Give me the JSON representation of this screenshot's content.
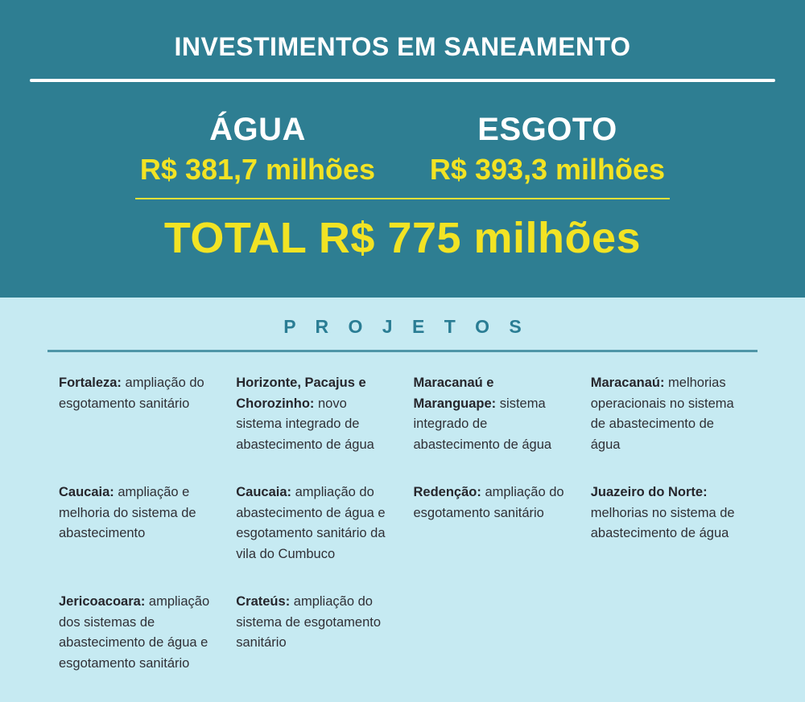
{
  "colors": {
    "header_bg": "#2e7e92",
    "accent_yellow": "#f2e324",
    "section_bg": "#c6eaf2",
    "section_title_color": "#2a7d94"
  },
  "header": {
    "title": "INVESTIMENTOS EM SANEAMENTO",
    "agua": {
      "label": "ÁGUA",
      "value": "R$ 381,7 milhões"
    },
    "esgoto": {
      "label": "ESGOTO",
      "value": "R$ 393,3 milhões"
    },
    "total": "TOTAL R$ 775 milhões"
  },
  "projects": {
    "section_title": "P R O J E T O S",
    "rows": [
      [
        {
          "name": "Fortaleza:",
          "desc": "ampliação do esgotamento sanitário"
        },
        {
          "name": "Horizonte, Pacajus e Chorozinho:",
          "desc": "novo sistema integrado de abastecimento de água"
        },
        {
          "name": "Maracanaú e Maranguape:",
          "desc": "sistema integrado de abastecimento de água"
        },
        {
          "name": "Maracanaú:",
          "desc": "melhorias operacionais no sistema de abastecimento de água"
        }
      ],
      [
        {
          "name": "Caucaia:",
          "desc": "ampliação e melhoria do sistema de abastecimento"
        },
        {
          "name": "Caucaia:",
          "desc": "ampliação do abastecimento de água e esgotamento sanitário da vila do Cumbuco"
        },
        {
          "name": "Redenção:",
          "desc": "ampliação do esgotamento sanitário"
        },
        {
          "name": "Juazeiro do Norte:",
          "desc": "melhorias no sistema de abastecimento de água"
        }
      ],
      [
        {
          "name": "Jericoacoara:",
          "desc": "ampliação dos sistemas de abastecimento de água e esgotamento sanitário"
        },
        {
          "name": "Crateús:",
          "desc": "ampliação do sistema de esgotamento sanitário"
        },
        {
          "name": "",
          "desc": ""
        },
        {
          "name": "",
          "desc": ""
        }
      ]
    ]
  }
}
